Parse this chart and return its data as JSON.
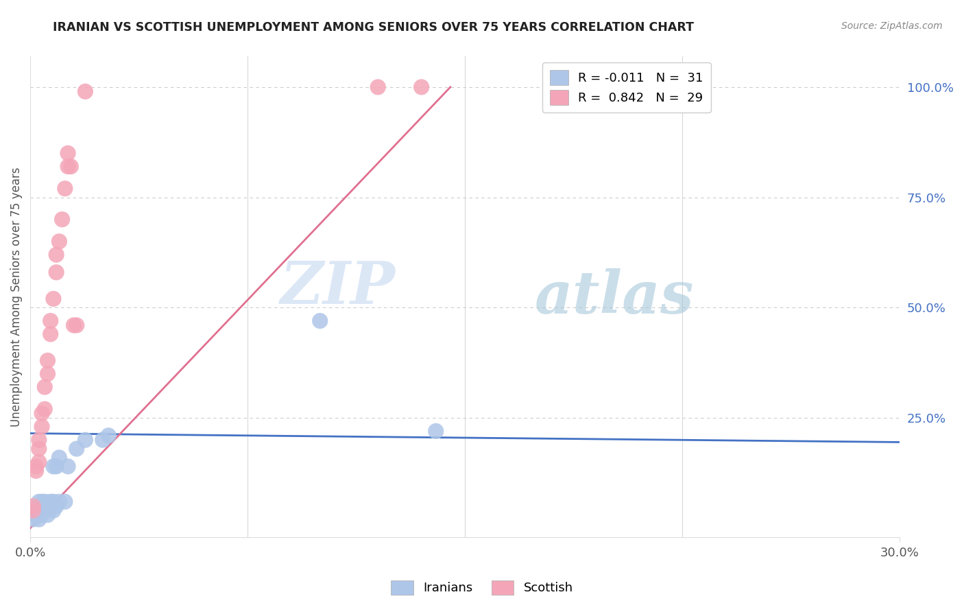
{
  "title": "IRANIAN VS SCOTTISH UNEMPLOYMENT AMONG SENIORS OVER 75 YEARS CORRELATION CHART",
  "source": "Source: ZipAtlas.com",
  "ylabel_left": "Unemployment Among Seniors over 75 years",
  "legend_iranian": "R = -0.011   N =  31",
  "legend_scottish": "R =  0.842   N =  29",
  "legend_labels": [
    "Iranians",
    "Scottish"
  ],
  "iranian_color": "#aec6e8",
  "scottish_color": "#f4a6b8",
  "iranian_line_color": "#4472c4",
  "scottish_line_color": "#e07090",
  "right_axis_color": "#4472c4",
  "watermark_zip": "ZIP",
  "watermark_atlas": "atlas",
  "iranian_points_x": [
    0.001,
    0.002,
    0.002,
    0.003,
    0.003,
    0.003,
    0.004,
    0.004,
    0.004,
    0.004,
    0.005,
    0.005,
    0.005,
    0.006,
    0.006,
    0.007,
    0.008,
    0.008,
    0.008,
    0.009,
    0.009,
    0.01,
    0.01,
    0.012,
    0.013,
    0.016,
    0.019,
    0.025,
    0.027,
    0.1,
    0.14
  ],
  "iranian_points_y": [
    0.02,
    0.03,
    0.04,
    0.02,
    0.05,
    0.06,
    0.03,
    0.04,
    0.05,
    0.06,
    0.04,
    0.05,
    0.06,
    0.03,
    0.05,
    0.06,
    0.04,
    0.06,
    0.14,
    0.05,
    0.14,
    0.06,
    0.16,
    0.06,
    0.14,
    0.18,
    0.2,
    0.2,
    0.21,
    0.47,
    0.22
  ],
  "scottish_points_x": [
    0.001,
    0.001,
    0.002,
    0.002,
    0.003,
    0.003,
    0.003,
    0.004,
    0.004,
    0.005,
    0.005,
    0.006,
    0.006,
    0.007,
    0.007,
    0.008,
    0.009,
    0.009,
    0.01,
    0.011,
    0.012,
    0.013,
    0.013,
    0.014,
    0.015,
    0.016,
    0.019,
    0.12,
    0.135
  ],
  "scottish_points_y": [
    0.04,
    0.05,
    0.13,
    0.14,
    0.15,
    0.18,
    0.2,
    0.23,
    0.26,
    0.27,
    0.32,
    0.35,
    0.38,
    0.44,
    0.47,
    0.52,
    0.58,
    0.62,
    0.65,
    0.7,
    0.77,
    0.82,
    0.85,
    0.82,
    0.46,
    0.46,
    0.99,
    1.0,
    1.0
  ],
  "iranian_line_x": [
    0.0,
    0.3
  ],
  "iranian_line_y": [
    0.215,
    0.195
  ],
  "scottish_line_x": [
    0.0,
    0.145
  ],
  "scottish_line_y": [
    0.0,
    1.0
  ],
  "xlim": [
    0.0,
    0.3
  ],
  "ylim": [
    -0.02,
    1.07
  ],
  "xticks": [
    0.0,
    0.3
  ],
  "yticks_right": [
    0.25,
    0.5,
    0.75,
    1.0
  ],
  "ytick_labels_right": [
    "25.0%",
    "50.0%",
    "75.0%",
    "100.0%"
  ],
  "background_color": "#ffffff"
}
